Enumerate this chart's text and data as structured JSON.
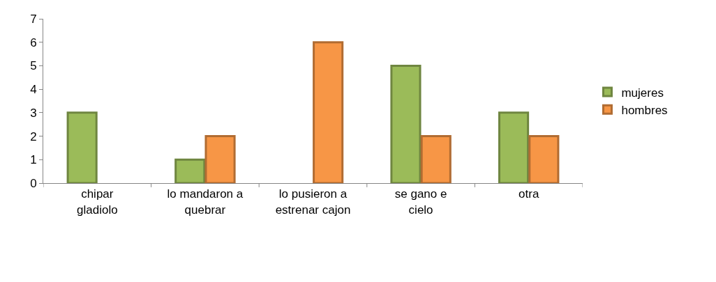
{
  "chart_data": {
    "type": "bar",
    "categories": [
      "chipar gladiolo",
      "lo mandaron a quebrar",
      "lo pusieron a estrenar cajon",
      "se gano e cielo",
      "otra"
    ],
    "series": [
      {
        "name": "mujeres",
        "color": "#9bbb59",
        "values": [
          3,
          1,
          null,
          5,
          3
        ]
      },
      {
        "name": "hombres",
        "color": "#f79646",
        "values": [
          null,
          2,
          6,
          2,
          2
        ]
      }
    ],
    "ylim": [
      0,
      7
    ],
    "yticks": [
      0,
      1,
      2,
      3,
      4,
      5,
      6,
      7
    ],
    "grid": false,
    "legend": "right"
  }
}
